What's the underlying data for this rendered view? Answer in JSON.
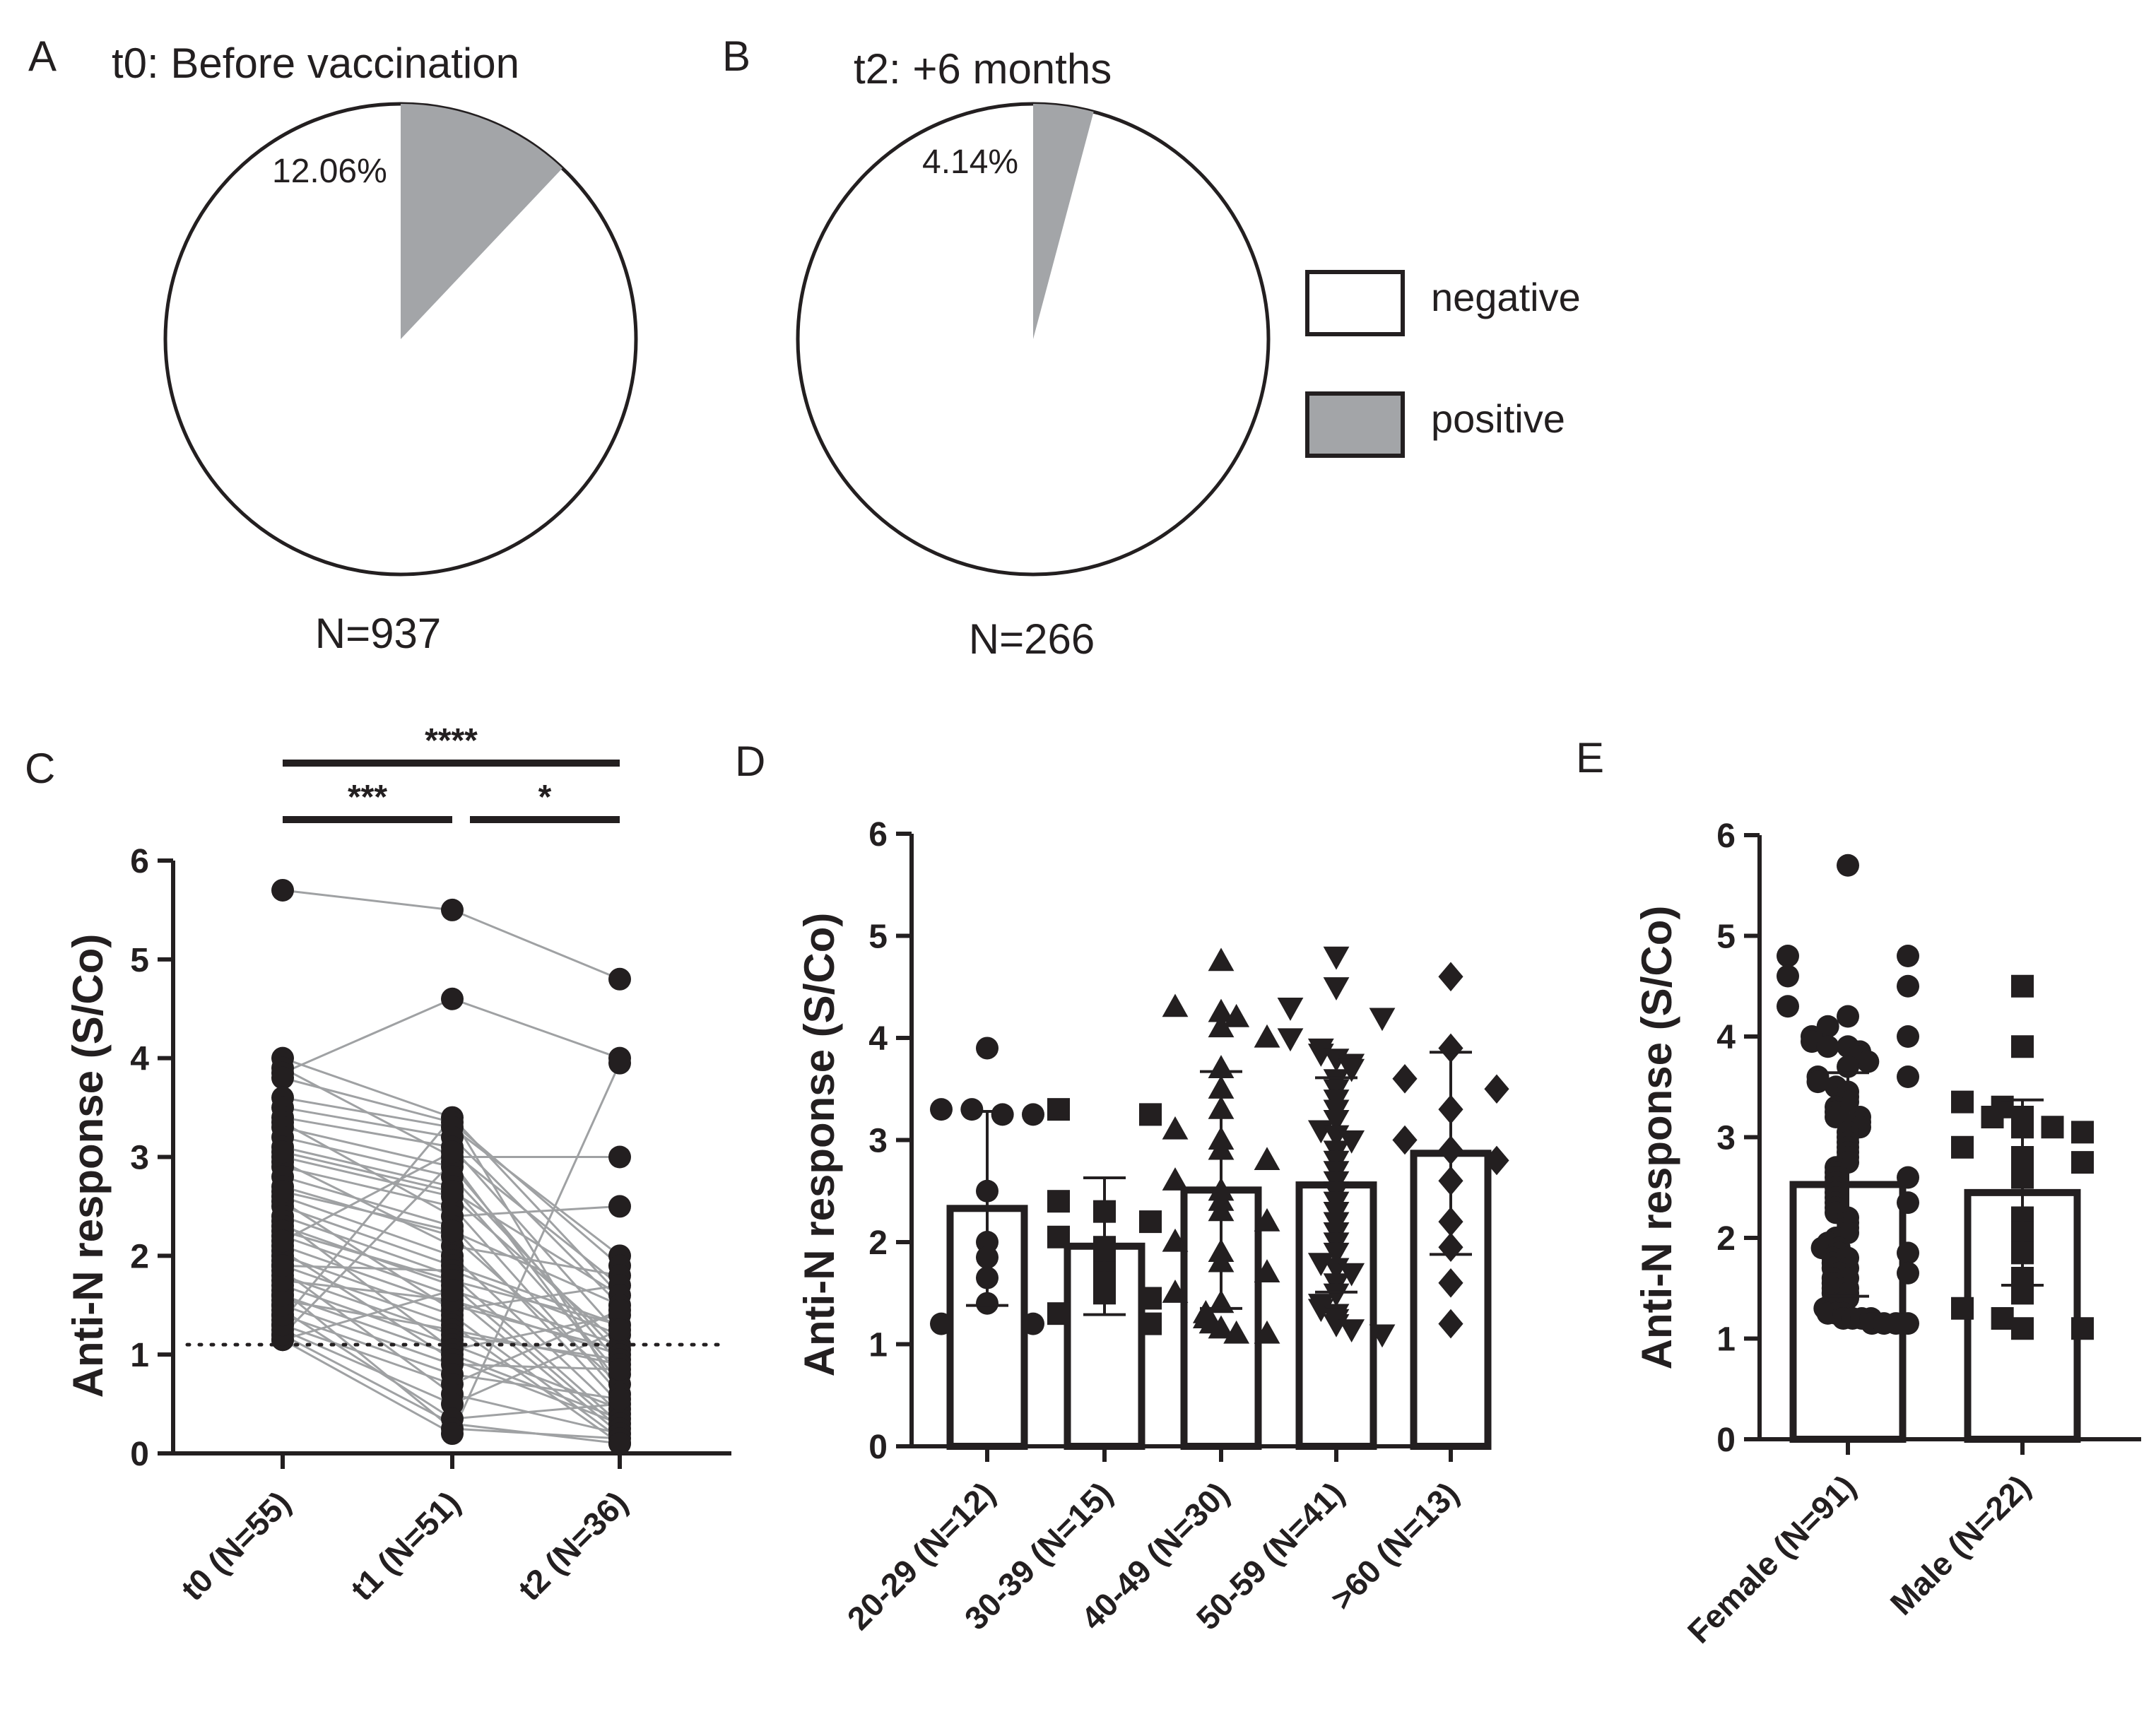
{
  "panel_letters": {
    "a": "A",
    "b": "B",
    "c": "C",
    "d": "D",
    "e": "E"
  },
  "legend": {
    "negative": "negative",
    "positive": "positive"
  },
  "colors": {
    "positive": "#a3a5a8",
    "negative": "#ffffff",
    "ink": "#231f20",
    "line": "#9fa1a3"
  },
  "chart_data": [
    {
      "panel": "A",
      "type": "pie",
      "title": "t0: Before vaccination",
      "slices": [
        {
          "label": "negative",
          "value": 87.94
        },
        {
          "label": "positive",
          "value": 12.06
        }
      ],
      "label_text": "12.06%",
      "n_label": "N=937"
    },
    {
      "panel": "B",
      "type": "pie",
      "title": "t2: +6 months",
      "slices": [
        {
          "label": "negative",
          "value": 95.86
        },
        {
          "label": "positive",
          "value": 4.14
        }
      ],
      "label_text": "4.14%",
      "n_label": "N=266"
    },
    {
      "panel": "C",
      "type": "scatter",
      "ylabel": "Anti-N response  (S/Co)",
      "ylim": [
        0,
        6
      ],
      "yticks": [
        "0",
        "1",
        "2",
        "3",
        "4",
        "5",
        "6"
      ],
      "categories": [
        "t0 (N=55)",
        "t1 (N=51)",
        "t2 (N=36)"
      ],
      "cutoff": 1.1,
      "series": [
        {
          "name": "t0",
          "values": [
            5.7,
            4.0,
            3.9,
            3.85,
            3.8,
            3.6,
            3.5,
            3.4,
            3.35,
            3.3,
            3.2,
            3.1,
            3.0,
            2.95,
            2.9,
            2.8,
            2.7,
            2.6,
            2.55,
            2.5,
            2.4,
            2.35,
            2.3,
            2.2,
            2.1,
            2.05,
            2.0,
            1.95,
            1.9,
            1.85,
            1.8,
            1.7,
            1.65,
            1.6,
            1.55,
            1.5,
            1.45,
            1.4,
            1.35,
            1.3,
            1.25,
            1.2,
            1.15,
            1.15,
            1.2,
            1.3,
            1.4,
            1.5,
            1.6,
            1.75,
            2.25,
            2.65,
            3.05,
            2.15,
            1.9
          ]
        },
        {
          "name": "t1",
          "values": [
            5.5,
            4.6,
            3.4,
            3.35,
            3.3,
            3.2,
            3.1,
            3.0,
            2.95,
            2.9,
            2.8,
            2.7,
            2.6,
            2.5,
            2.4,
            2.3,
            2.2,
            2.1,
            2.0,
            1.95,
            1.9,
            1.85,
            1.8,
            1.7,
            1.6,
            1.5,
            1.45,
            1.4,
            1.35,
            1.3,
            1.25,
            1.2,
            1.15,
            1.1,
            1.05,
            1.0,
            0.95,
            0.9,
            0.8,
            0.7,
            0.6,
            0.5,
            0.35,
            0.25,
            0.2,
            1.55,
            1.75,
            2.25,
            2.65,
            3.05,
            1.65
          ]
        },
        {
          "name": "t2",
          "values": [
            4.8,
            4.0,
            3.95,
            3.0,
            2.5,
            2.0,
            1.9,
            1.8,
            1.7,
            1.6,
            1.5,
            1.4,
            1.3,
            1.2,
            1.1,
            1.05,
            1.0,
            0.95,
            0.9,
            0.8,
            0.7,
            0.6,
            0.5,
            0.45,
            0.4,
            0.35,
            0.3,
            0.25,
            0.2,
            0.15,
            0.1,
            0.1,
            1.45,
            1.25,
            0.85,
            0.55
          ]
        }
      ],
      "pairs": [
        [
          5.7,
          5.5,
          4.8
        ],
        [
          3.85,
          4.6,
          4.0
        ],
        [
          4.0,
          3.4,
          1.6
        ],
        [
          3.8,
          3.35,
          1.9
        ],
        [
          3.6,
          3.3,
          2.0
        ],
        [
          3.5,
          3.2,
          1.5
        ],
        [
          3.4,
          3.1,
          1.2
        ],
        [
          3.3,
          2.9,
          0.9
        ],
        [
          3.2,
          2.8,
          1.0
        ],
        [
          3.1,
          2.7,
          0.8
        ],
        [
          3.0,
          2.6,
          1.1
        ],
        [
          2.9,
          2.5,
          0.6
        ],
        [
          2.8,
          2.3,
          0.5
        ],
        [
          2.7,
          2.2,
          0.7
        ],
        [
          2.6,
          2.0,
          0.4
        ],
        [
          2.5,
          1.9,
          1.3
        ],
        [
          2.4,
          1.8,
          0.3
        ],
        [
          2.3,
          1.7,
          0.25
        ],
        [
          2.2,
          1.6,
          0.2
        ],
        [
          2.1,
          1.5,
          1.05
        ],
        [
          2.0,
          1.4,
          0.15
        ],
        [
          1.9,
          1.3,
          0.1
        ],
        [
          1.8,
          1.2,
          0.95
        ],
        [
          1.7,
          1.1,
          0.45
        ],
        [
          1.6,
          1.0,
          0.35
        ],
        [
          1.5,
          0.9,
          0.85
        ],
        [
          1.4,
          0.8,
          0.55
        ],
        [
          1.3,
          0.7,
          1.45
        ],
        [
          1.25,
          0.5,
          1.25
        ],
        [
          1.2,
          0.3,
          0.1
        ],
        [
          1.15,
          0.2,
          3.95
        ],
        [
          3.9,
          3.0,
          3.0
        ],
        [
          3.35,
          2.4,
          2.5
        ],
        [
          2.95,
          2.1,
          1.8
        ],
        [
          2.55,
          1.45,
          1.7
        ],
        [
          2.35,
          1.05,
          1.4
        ],
        [
          2.05,
          0.95,
          0.3
        ],
        [
          1.85,
          0.6,
          0.2
        ],
        [
          1.65,
          0.25,
          0.15
        ],
        [
          1.45,
          0.35,
          0.5
        ],
        [
          1.35,
          3.4,
          0.6
        ],
        [
          1.2,
          2.95,
          0.7
        ],
        [
          1.55,
          1.25,
          0.9
        ],
        [
          1.75,
          1.55,
          1.0
        ],
        [
          2.25,
          1.75,
          1.3
        ],
        [
          2.65,
          2.25,
          1.5
        ],
        [
          3.05,
          2.65,
          1.6
        ],
        [
          2.15,
          3.05,
          1.7
        ],
        [
          1.9,
          1.85,
          1.2
        ],
        [
          1.15,
          1.65,
          1.1
        ]
      ],
      "significance": [
        {
          "groups": [
            "t0 (N=55)",
            "t2 (N=36)"
          ],
          "label": "****"
        },
        {
          "groups": [
            "t0 (N=55)",
            "t1 (N=51)"
          ],
          "label": "***"
        },
        {
          "groups": [
            "t1 (N=51)",
            "t2 (N=36)"
          ],
          "label": "*"
        }
      ]
    },
    {
      "panel": "D",
      "type": "bar",
      "ylabel": "Anti-N response  (S/Co)",
      "ylim": [
        0,
        6
      ],
      "yticks": [
        "0",
        "1",
        "2",
        "3",
        "4",
        "5",
        "6"
      ],
      "categories": [
        "20-29 (N=12)",
        "30-39 (N=15)",
        "40-49 (N=30)",
        "50-59 (N=41)",
        ">60 (N=13)"
      ],
      "values": [
        2.33,
        1.96,
        2.51,
        2.56,
        2.87
      ],
      "errors": [
        0.95,
        0.67,
        1.16,
        1.05,
        0.99
      ],
      "markers": [
        "circle",
        "square",
        "triangle-up",
        "triangle-down",
        "diamond"
      ],
      "points": [
        [
          3.9,
          3.3,
          3.3,
          3.25,
          3.25,
          2.5,
          2.0,
          1.85,
          1.65,
          1.4,
          1.2,
          1.2
        ],
        [
          3.3,
          3.25,
          2.4,
          2.3,
          2.2,
          2.05,
          1.95,
          1.9,
          1.8,
          1.7,
          1.6,
          1.5,
          1.45,
          1.3,
          1.2
        ],
        [
          4.75,
          4.3,
          4.25,
          4.2,
          4.1,
          4.0,
          3.7,
          3.5,
          3.3,
          3.1,
          3.0,
          2.9,
          2.8,
          2.6,
          2.5,
          2.4,
          2.3,
          2.2,
          2.0,
          1.9,
          1.8,
          1.7,
          1.5,
          1.4,
          1.3,
          1.25,
          1.2,
          1.15,
          1.1,
          1.1
        ],
        [
          4.8,
          4.5,
          4.3,
          4.2,
          4.0,
          3.9,
          3.85,
          3.8,
          3.75,
          3.7,
          3.6,
          3.5,
          3.4,
          3.3,
          3.2,
          3.1,
          3.05,
          3.0,
          2.9,
          2.8,
          2.7,
          2.6,
          2.5,
          2.4,
          2.3,
          2.2,
          2.1,
          2.0,
          1.9,
          1.8,
          1.75,
          1.7,
          1.6,
          1.5,
          1.4,
          1.35,
          1.3,
          1.25,
          1.2,
          1.15,
          1.1
        ],
        [
          4.6,
          3.9,
          3.6,
          3.5,
          3.3,
          3.0,
          2.9,
          2.8,
          2.6,
          2.2,
          1.95,
          1.6,
          1.2
        ]
      ]
    },
    {
      "panel": "E",
      "type": "bar",
      "ylabel": "Anti-N response  (S/Co)",
      "ylim": [
        0,
        6
      ],
      "yticks": [
        "0",
        "1",
        "2",
        "3",
        "4",
        "5",
        "6"
      ],
      "categories": [
        "Female (N=91)",
        "Male (N=22)"
      ],
      "values": [
        2.53,
        2.45
      ],
      "errors": [
        1.11,
        0.92
      ],
      "markers": [
        "circle",
        "square"
      ],
      "points": [
        [
          5.7,
          4.8,
          4.8,
          4.6,
          4.5,
          4.3,
          4.2,
          4.1,
          4.0,
          3.95,
          3.9,
          3.9,
          3.85,
          3.8,
          3.75,
          3.7,
          3.6,
          3.55,
          3.5,
          3.45,
          3.4,
          3.35,
          3.3,
          3.25,
          3.2,
          3.2,
          3.15,
          3.1,
          3.05,
          3.0,
          2.95,
          2.9,
          2.85,
          2.8,
          2.75,
          2.7,
          2.65,
          2.6,
          2.55,
          2.5,
          2.45,
          2.4,
          2.35,
          2.3,
          2.25,
          2.2,
          2.15,
          2.1,
          2.05,
          2.0,
          1.95,
          1.9,
          1.9,
          1.85,
          1.8,
          1.8,
          1.75,
          1.7,
          1.7,
          1.65,
          1.6,
          1.6,
          1.55,
          1.5,
          1.5,
          1.45,
          1.45,
          1.4,
          1.4,
          1.35,
          1.35,
          1.3,
          1.3,
          1.3,
          1.25,
          1.25,
          1.25,
          1.2,
          1.2,
          1.2,
          1.2,
          1.15,
          1.15,
          1.15,
          1.15,
          2.35,
          2.6,
          1.85,
          3.6,
          4.0,
          1.65
        ],
        [
          4.5,
          3.9,
          3.35,
          3.3,
          3.2,
          3.2,
          3.1,
          3.1,
          3.05,
          2.9,
          2.8,
          2.75,
          2.6,
          2.2,
          2.05,
          1.85,
          1.6,
          1.45,
          1.3,
          1.2,
          1.1,
          1.1
        ]
      ]
    }
  ]
}
